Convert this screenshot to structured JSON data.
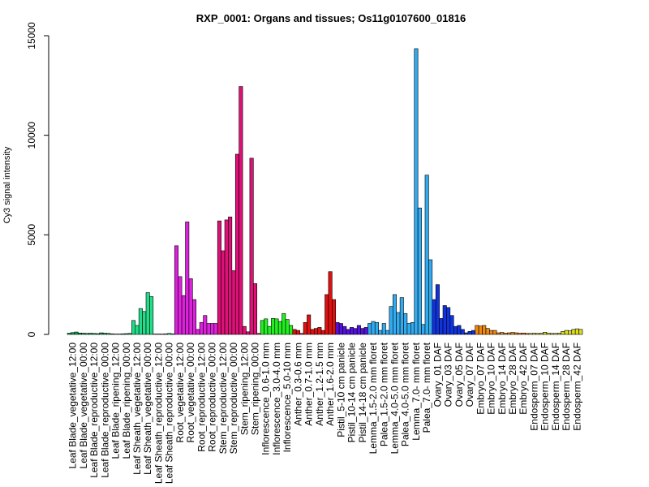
{
  "chart_data": {
    "type": "bar",
    "title": "RXP_0001: Organs and tissues; Os11g0107600_01816",
    "xlabel": "",
    "ylabel": "Cy3 signal intensity",
    "ylim": [
      0,
      15000
    ],
    "yticks": [
      0,
      5000,
      10000,
      15000
    ],
    "ytick_labels": [
      "0",
      "5000",
      "10000",
      "15000"
    ],
    "grid": false,
    "groups": [
      {
        "label": "Leaf Blade_vegetative_12:00",
        "color": "#00aa44",
        "values": [
          60,
          90,
          120
        ]
      },
      {
        "label": "Leaf Blade_vegetative_00:00",
        "color": "#00aa44",
        "values": [
          70,
          60,
          50
        ]
      },
      {
        "label": "Leaf Blade_reproductive_12:00",
        "color": "#00aa44",
        "values": [
          60,
          50,
          40
        ]
      },
      {
        "label": "Leaf Blade_reproductive_00:00",
        "color": "#00aa44",
        "values": [
          80,
          60,
          50
        ]
      },
      {
        "label": "Leaf Blade_ripening_12:00",
        "color": "#00aa44",
        "values": [
          30,
          20,
          20
        ]
      },
      {
        "label": "Leaf Blade_ripening_00:00",
        "color": "#00aa44",
        "values": [
          30,
          40,
          50
        ]
      },
      {
        "label": "Leaf Sheath_vegetative_12:00",
        "color": "#22dd88",
        "values": [
          700,
          450,
          1300
        ]
      },
      {
        "label": "Leaf Sheath_vegetative_00:00",
        "color": "#22dd88",
        "values": [
          1150,
          2100,
          1900
        ]
      },
      {
        "label": "Leaf Sheath_reproductive_12:00",
        "color": "#22dd88",
        "values": [
          20,
          20,
          20
        ]
      },
      {
        "label": "Leaf Sheath_reproductive_00:00",
        "color": "#22dd88",
        "values": [
          30,
          50,
          30
        ]
      },
      {
        "label": "Root_vegetative_12:00",
        "color": "#dd22dd",
        "values": [
          4450,
          2900,
          1950
        ]
      },
      {
        "label": "Root_vegetative_00:00",
        "color": "#dd22dd",
        "values": [
          5650,
          2800,
          1750
        ]
      },
      {
        "label": "Root_reproductive_12:00",
        "color": "#dd22dd",
        "values": [
          250,
          600,
          950
        ]
      },
      {
        "label": "Root_reproductive_00:00",
        "color": "#dd22dd",
        "values": [
          550,
          550,
          550
        ]
      },
      {
        "label": "Stem_reproductive_12:00",
        "color": "#dd1177",
        "values": [
          5700,
          4200,
          5750
        ]
      },
      {
        "label": "Stem_reproductive_00:00",
        "color": "#dd1177",
        "values": [
          5900,
          3200,
          9050
        ]
      },
      {
        "label": "Stem_ripening_12:00",
        "color": "#dd1177",
        "values": [
          12450,
          400,
          130
        ]
      },
      {
        "label": "Stem_ripening_00:00",
        "color": "#dd1177",
        "values": [
          8850,
          2550,
          50
        ]
      },
      {
        "label": "Inflorescence_0.6-1.0 mm",
        "color": "#22ee22",
        "values": [
          700,
          780,
          400
        ]
      },
      {
        "label": "Inflorescence_3.0-4.0 mm",
        "color": "#22ee22",
        "values": [
          800,
          780,
          650
        ]
      },
      {
        "label": "Inflorescence_5.0-10 mm",
        "color": "#22ee22",
        "values": [
          1050,
          750,
          450
        ]
      },
      {
        "label": "Anther_0.3-0.6 mm",
        "color": "#dd1111",
        "values": [
          250,
          200,
          50
        ]
      },
      {
        "label": "Anther_0.7-1.0 mm",
        "color": "#dd1111",
        "values": [
          600,
          980,
          250
        ]
      },
      {
        "label": "Anther_1.2-1.5 mm",
        "color": "#dd1111",
        "values": [
          300,
          350,
          200
        ]
      },
      {
        "label": "Anther_1.6-2.0 mm",
        "color": "#dd1111",
        "values": [
          2000,
          3150,
          1750
        ]
      },
      {
        "label": "Pistil_5-10 cm panicle",
        "color": "#5511dd",
        "values": [
          600,
          550,
          400
        ]
      },
      {
        "label": "Pistil_10-14 cm panicle",
        "color": "#5511dd",
        "values": [
          250,
          350,
          300
        ]
      },
      {
        "label": "Pistil_14-18 cm panicle",
        "color": "#5511dd",
        "values": [
          450,
          300,
          350
        ]
      },
      {
        "label": "Lemma_1.5-2.0 mm floret",
        "color": "#33aaee",
        "values": [
          550,
          650,
          600
        ]
      },
      {
        "label": "Palea_1.5-2.0 mm floret",
        "color": "#33aaee",
        "values": [
          200,
          550,
          200
        ]
      },
      {
        "label": "Lemma_4.0-5.0 mm floret",
        "color": "#33aaee",
        "values": [
          1400,
          2000,
          1100
        ]
      },
      {
        "label": "Palea_4.0-5.0 mm floret",
        "color": "#33aaee",
        "values": [
          1850,
          1050,
          550
        ]
      },
      {
        "label": "Lemma_7.0- mm floret",
        "color": "#33aaee",
        "values": [
          600,
          14350,
          6350
        ]
      },
      {
        "label": "Palea_7.0- mm floret",
        "color": "#33aaee",
        "values": [
          500,
          8000,
          3750
        ]
      },
      {
        "label": "Ovary_01 DAF",
        "color": "#1133dd",
        "values": [
          1750,
          2500,
          800
        ]
      },
      {
        "label": "Ovary_03 DAF",
        "color": "#1133dd",
        "values": [
          1450,
          1350,
          950
        ]
      },
      {
        "label": "Ovary_05 DAF",
        "color": "#1133dd",
        "values": [
          400,
          450,
          250
        ]
      },
      {
        "label": "Ovary_07 DAF",
        "color": "#1133dd",
        "values": [
          80,
          150,
          200
        ]
      },
      {
        "label": "Embryo_07 DAF",
        "color": "#ee8811",
        "values": [
          450,
          420,
          450
        ]
      },
      {
        "label": "Embryo_10 DAF",
        "color": "#ee8811",
        "values": [
          300,
          200,
          200
        ]
      },
      {
        "label": "Embryo_14 DAF",
        "color": "#ee8811",
        "values": [
          80,
          100,
          60
        ]
      },
      {
        "label": "Embryo_28 DAF",
        "color": "#ee8811",
        "values": [
          80,
          100,
          80
        ]
      },
      {
        "label": "Embryo_42 DAF",
        "color": "#ee8811",
        "values": [
          60,
          70,
          50
        ]
      },
      {
        "label": "Endosperm_07 DAF",
        "color": "#dddd22",
        "values": [
          50,
          60,
          50
        ]
      },
      {
        "label": "Endosperm_10 DAF",
        "color": "#dddd22",
        "values": [
          60,
          110,
          60
        ]
      },
      {
        "label": "Endosperm_14 DAF",
        "color": "#dddd22",
        "values": [
          50,
          50,
          60
        ]
      },
      {
        "label": "Endosperm_28 DAF",
        "color": "#dddd22",
        "values": [
          150,
          200,
          180
        ]
      },
      {
        "label": "Endosperm_42 DAF",
        "color": "#dddd22",
        "values": [
          250,
          280,
          250
        ]
      }
    ]
  }
}
